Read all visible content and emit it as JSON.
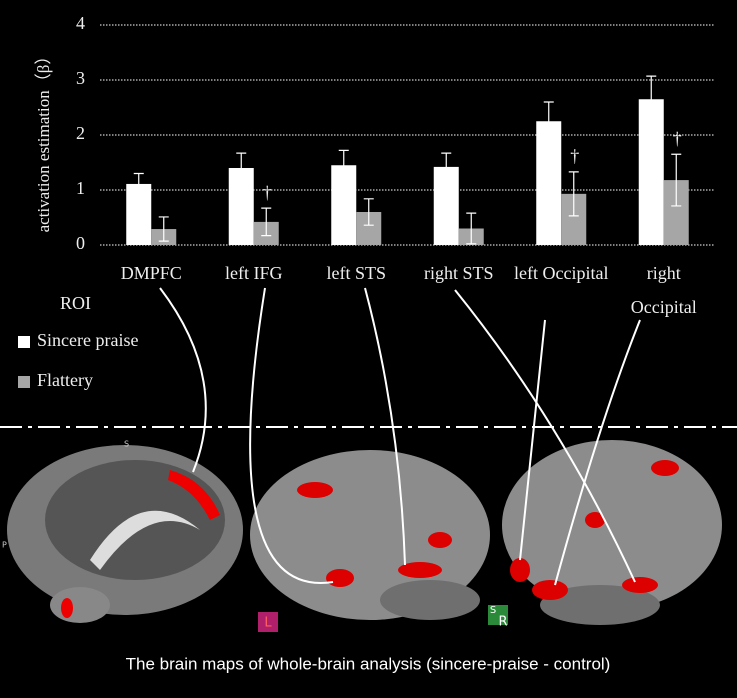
{
  "chart_data": {
    "type": "bar",
    "y_label": "activation estimation（β）",
    "x_label": "ROI",
    "categories": [
      "DMPFC",
      "left IFG",
      "left STS",
      "right STS",
      "left Occipital",
      "right Occipital"
    ],
    "series": [
      {
        "name": "Sincere praise",
        "color": "#ffffff",
        "values": [
          1.11,
          1.4,
          1.45,
          1.42,
          2.25,
          2.65
        ],
        "errors": [
          0.19,
          0.27,
          0.27,
          0.25,
          0.35,
          0.42
        ]
      },
      {
        "name": "Flattery",
        "color": "#a6a6a6",
        "values": [
          0.29,
          0.42,
          0.6,
          0.3,
          0.93,
          1.18
        ],
        "errors": [
          0.22,
          0.25,
          0.24,
          0.28,
          0.4,
          0.47
        ]
      }
    ],
    "markers": [
      null,
      "†",
      null,
      null,
      "†",
      "†"
    ],
    "ylim": [
      0,
      4
    ],
    "yticks": [
      0,
      1,
      2,
      3,
      4
    ],
    "grid": true
  },
  "image": {
    "caption": "The brain maps of whole-brain analysis (sincere-praise - control)",
    "labels": [
      "S",
      "P",
      "L",
      "S",
      "R"
    ]
  }
}
